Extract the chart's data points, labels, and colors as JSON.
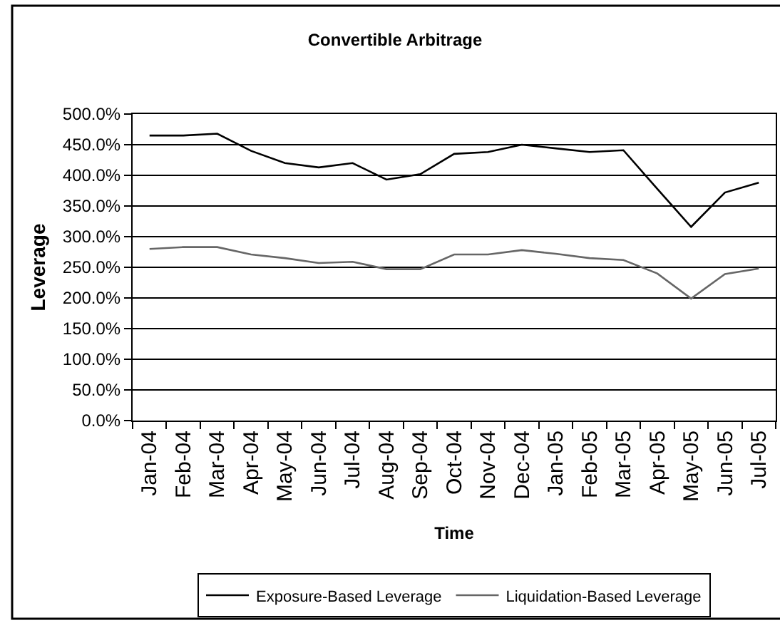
{
  "chart_data": {
    "type": "line",
    "title": "Convertible Arbitrage",
    "xlabel": "Time",
    "ylabel": "Leverage",
    "categories": [
      "Jan-04",
      "Feb-04",
      "Mar-04",
      "Apr-04",
      "May-04",
      "Jun-04",
      "Jul-04",
      "Aug-04",
      "Sep-04",
      "Oct-04",
      "Nov-04",
      "Dec-04",
      "Jan-05",
      "Feb-05",
      "Mar-05",
      "Apr-05",
      "May-05",
      "Jun-05",
      "Jul-05"
    ],
    "series": [
      {
        "name": "Exposure-Based Leverage",
        "color": "#000000",
        "values": [
          465,
          465,
          468,
          440,
          420,
          413,
          420,
          393,
          402,
          435,
          438,
          450,
          444,
          438,
          441,
          378,
          316,
          372,
          388
        ]
      },
      {
        "name": "Liquidation-Based Leverage",
        "color": "#666666",
        "values": [
          280,
          283,
          283,
          271,
          265,
          257,
          259,
          247,
          247,
          271,
          271,
          278,
          272,
          265,
          262,
          240,
          199,
          239,
          248
        ]
      }
    ],
    "ylim": [
      0,
      500
    ],
    "yticks": [
      {
        "value": 0,
        "label": "0.0%"
      },
      {
        "value": 50,
        "label": "50.0%"
      },
      {
        "value": 100,
        "label": "100.0%"
      },
      {
        "value": 150,
        "label": "150.0%"
      },
      {
        "value": 200,
        "label": "200.0%"
      },
      {
        "value": 250,
        "label": "250.0%"
      },
      {
        "value": 300,
        "label": "300.0%"
      },
      {
        "value": 350,
        "label": "350.0%"
      },
      {
        "value": 400,
        "label": "400.0%"
      },
      {
        "value": 450,
        "label": "450.0%"
      },
      {
        "value": 500,
        "label": "500.0%"
      }
    ],
    "grid": "y",
    "legend": "bottom",
    "marker": "none",
    "line_style": "solid"
  }
}
